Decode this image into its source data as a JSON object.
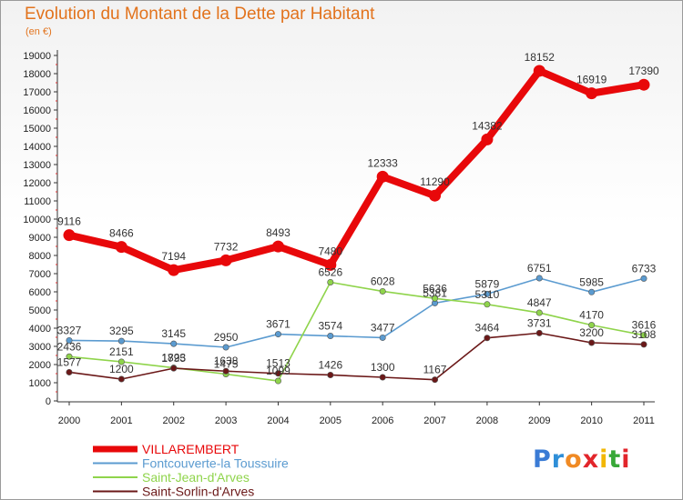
{
  "title": "Evolution du Montant de la Dette par Habitant",
  "unit_label": "(en €)",
  "logo": {
    "text": "Proxiti",
    "letter_colors": [
      "#3a7bd5",
      "#2f8fd8",
      "#f08a24",
      "#e2252b",
      "#f2b705",
      "#38a838",
      "#e2252b"
    ]
  },
  "chart_data": {
    "type": "line",
    "title": "Evolution du Montant de la Dette par Habitant",
    "ylabel": "(en €)",
    "xlabel": "",
    "x": [
      "2000",
      "2001",
      "2002",
      "2003",
      "2004",
      "2005",
      "2006",
      "2007",
      "2008",
      "2009",
      "2010",
      "2011"
    ],
    "ylim": [
      0,
      19000
    ],
    "yticks": [
      "0",
      "1000",
      "2000",
      "3000",
      "4000",
      "5000",
      "6000",
      "7000",
      "8000",
      "9000",
      "10000",
      "11000",
      "12000",
      "13000",
      "14000",
      "15000",
      "16000",
      "17000",
      "18000",
      "19000"
    ],
    "grid": false,
    "legend_position": "bottom-left",
    "series": [
      {
        "name": "VILLAREMBERT",
        "color": "#e8080a",
        "values": [
          9116,
          8466,
          7194,
          7732,
          8493,
          7480,
          12333,
          11290,
          14382,
          18152,
          16919,
          17390
        ],
        "labels": [
          "9116",
          "8466",
          "7194",
          "7732",
          "8493",
          "7480",
          "12333",
          "11290",
          "14382",
          "18152",
          "16919",
          "17390"
        ]
      },
      {
        "name": "Fontcouverte-la Toussuire",
        "color": "#5b9bd0",
        "values": [
          3327,
          3295,
          3145,
          2950,
          3671,
          3574,
          3477,
          5381,
          5879,
          6751,
          5985,
          6733
        ],
        "labels": [
          "3327",
          "3295",
          "3145",
          "2950",
          "3671",
          "3574",
          "3477",
          "5381",
          "5879",
          "6751",
          "5985",
          "6733"
        ]
      },
      {
        "name": "Saint-Jean-d'Arves",
        "color": "#8fd44b",
        "values": [
          2436,
          2151,
          1823,
          1475,
          1099,
          6526,
          6028,
          5636,
          5310,
          4847,
          4170,
          3616
        ],
        "labels": [
          "2436",
          "2151",
          "1823",
          "1475",
          "1099",
          "6526",
          "6028",
          "5636",
          "5310",
          "4847",
          "4170",
          "3616"
        ]
      },
      {
        "name": "Saint-Sorlin-d'Arves",
        "color": "#6b1818",
        "values": [
          1577,
          1200,
          1795,
          1638,
          1513,
          1426,
          1300,
          1167,
          3464,
          3731,
          3200,
          3108
        ],
        "labels": [
          "1577",
          "1200",
          "1795",
          "1638",
          "1513",
          "1426",
          "1300",
          "1167",
          "3464",
          "3731",
          "3200",
          "3108"
        ]
      }
    ]
  }
}
